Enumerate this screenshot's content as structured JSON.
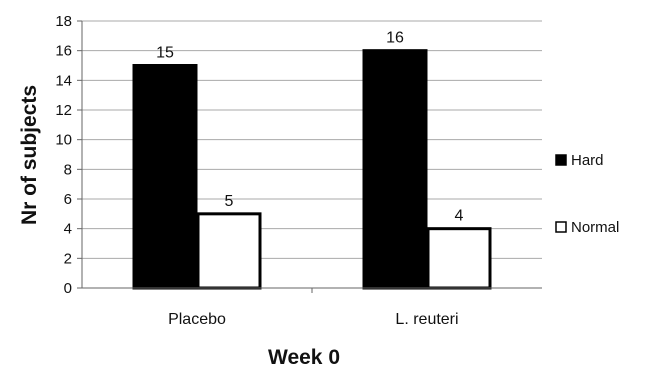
{
  "chart_data": {
    "type": "bar",
    "categories": [
      "Placebo",
      "L. reuteri"
    ],
    "series": [
      {
        "name": "Hard",
        "values": [
          15,
          16
        ],
        "color": "#000000"
      },
      {
        "name": "Normal",
        "values": [
          5,
          4
        ],
        "color": "#ffffff"
      }
    ],
    "xlabel": "Week 0",
    "ylabel": "Nr of subjects",
    "ylim": [
      0,
      18
    ],
    "ytick_step": 2,
    "yticks": [
      "0",
      "2",
      "4",
      "6",
      "8",
      "10",
      "12",
      "14",
      "16",
      "18"
    ],
    "data_labels": [
      [
        "15",
        "16"
      ],
      [
        "5",
        "4"
      ]
    ],
    "grid": true,
    "legend": "right",
    "bar_outline": "#000000",
    "grid_color": "#aaaaaa"
  }
}
